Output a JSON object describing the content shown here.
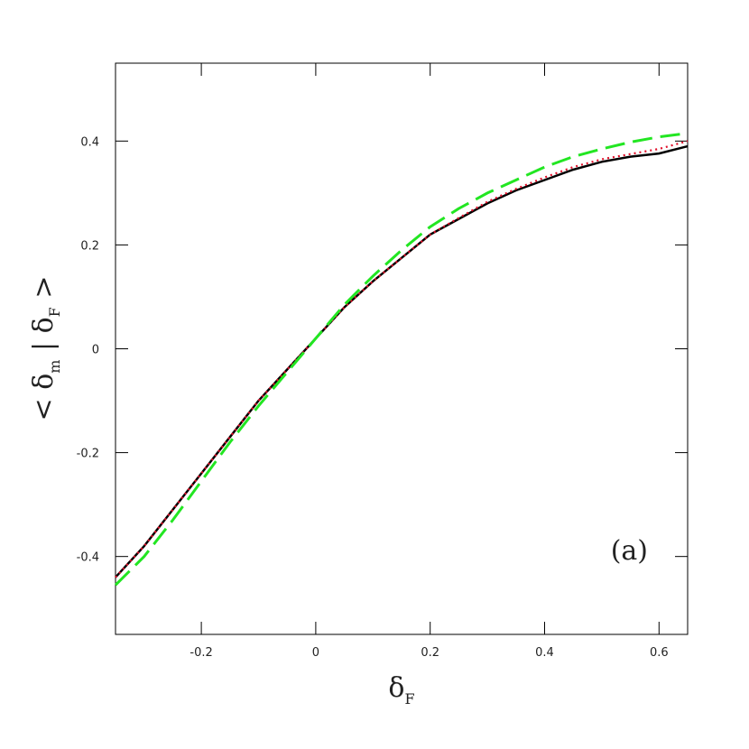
{
  "chart_data": {
    "type": "line",
    "x": [
      -0.35,
      -0.3,
      -0.25,
      -0.2,
      -0.15,
      -0.1,
      -0.05,
      0,
      0.05,
      0.1,
      0.15,
      0.2,
      0.25,
      0.3,
      0.35,
      0.4,
      0.45,
      0.5,
      0.55,
      0.6,
      0.65
    ],
    "series": [
      {
        "color": "#000000",
        "style": "solid",
        "values": [
          -0.44,
          -0.38,
          -0.31,
          -0.24,
          -0.17,
          -0.1,
          -0.04,
          0.02,
          0.08,
          0.13,
          0.175,
          0.22,
          0.25,
          0.28,
          0.305,
          0.325,
          0.345,
          0.36,
          0.37,
          0.376,
          0.39
        ]
      },
      {
        "color": "#e0102a",
        "style": "dotted",
        "values": [
          -0.44,
          -0.38,
          -0.31,
          -0.24,
          -0.17,
          -0.1,
          -0.04,
          0.02,
          0.08,
          0.13,
          0.175,
          0.22,
          0.252,
          0.283,
          0.308,
          0.33,
          0.35,
          0.365,
          0.375,
          0.385,
          0.4
        ]
      },
      {
        "color": "#22e622",
        "style": "dashed",
        "values": [
          -0.455,
          -0.4,
          -0.33,
          -0.255,
          -0.18,
          -0.11,
          -0.045,
          0.02,
          0.085,
          0.14,
          0.19,
          0.235,
          0.27,
          0.3,
          0.325,
          0.35,
          0.37,
          0.385,
          0.398,
          0.408,
          0.415
        ]
      }
    ],
    "xlim": [
      -0.35,
      0.65
    ],
    "ylim": [
      -0.55,
      0.55
    ],
    "xticks": [
      -0.2,
      0,
      0.2,
      0.4,
      0.6
    ],
    "yticks": [
      -0.4,
      -0.2,
      0,
      0.2,
      0.4
    ],
    "xlabel": [
      {
        "text": "δ",
        "sub": false
      },
      {
        "text": "F",
        "sub": true
      }
    ],
    "ylabel": [
      {
        "text": "< δ",
        "sub": false
      },
      {
        "text": "m",
        "sub": true
      },
      {
        "text": "  |  δ",
        "sub": false
      },
      {
        "text": "F",
        "sub": true
      },
      {
        "text": " >",
        "sub": false
      }
    ],
    "annotation": "(a)"
  }
}
